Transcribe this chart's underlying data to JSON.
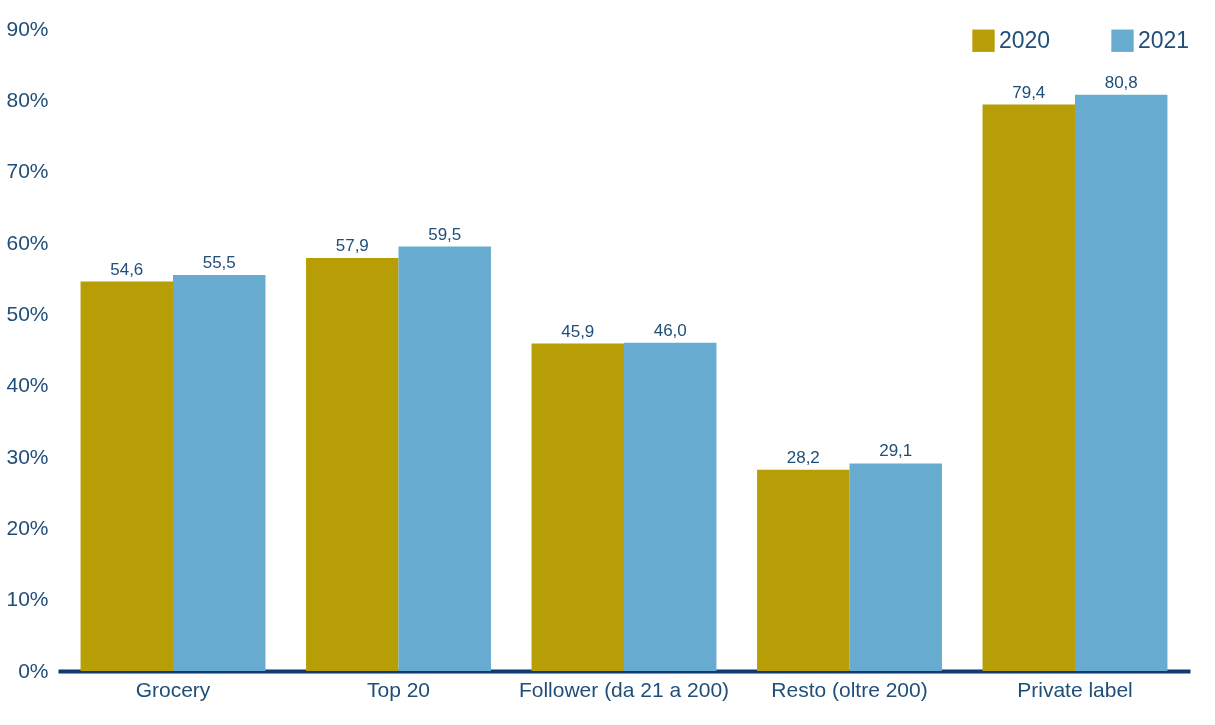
{
  "chart_data": {
    "type": "bar",
    "categories": [
      "Grocery",
      "Top 20",
      "Follower (da 21 a 200)",
      "Resto (oltre 200)",
      "Private label"
    ],
    "series": [
      {
        "name": "2020",
        "color": "#b89e06",
        "values": [
          54.6,
          57.9,
          45.9,
          28.2,
          79.4
        ],
        "value_labels": [
          "54,6",
          "57,9",
          "45,9",
          "28,2",
          "79,4"
        ]
      },
      {
        "name": "2021",
        "color": "#67acd0",
        "values": [
          55.5,
          59.5,
          46.0,
          29.1,
          80.8
        ],
        "value_labels": [
          "55,5",
          "59,5",
          "46,0",
          "29,1",
          "80,8"
        ]
      }
    ],
    "ylim": [
      0,
      90
    ],
    "yticks": [
      {
        "value": 0,
        "label": "0%"
      },
      {
        "value": 10,
        "label": "10%"
      },
      {
        "value": 20,
        "label": "20%"
      },
      {
        "value": 30,
        "label": "30%"
      },
      {
        "value": 40,
        "label": "40%"
      },
      {
        "value": 50,
        "label": "50%"
      },
      {
        "value": 60,
        "label": "60%"
      },
      {
        "value": 70,
        "label": "70%"
      },
      {
        "value": 80,
        "label": "80%"
      },
      {
        "value": 90,
        "label": "90%"
      }
    ],
    "grid": false,
    "legend": "top right"
  }
}
